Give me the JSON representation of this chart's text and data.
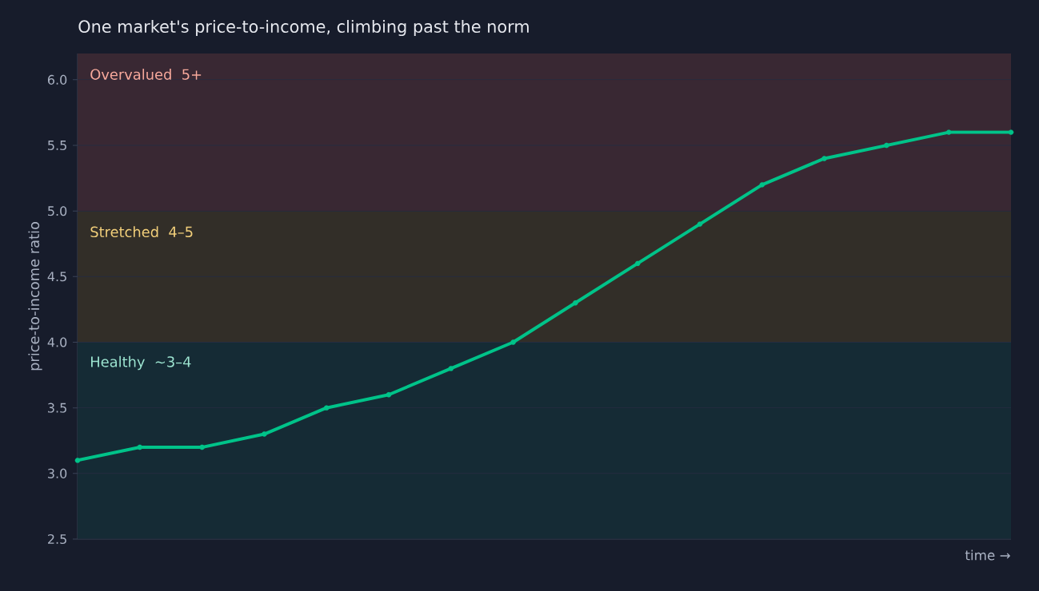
{
  "chart_data": {
    "type": "line",
    "title": "One market's price-to-income, climbing past the norm",
    "xlabel": "time →",
    "ylabel": "price-to-income ratio",
    "categories": [
      null,
      null,
      null,
      null,
      null,
      null,
      null,
      null,
      null,
      null,
      null,
      null,
      null,
      null,
      null,
      null
    ],
    "values": [
      3.1,
      3.2,
      3.2,
      3.3,
      3.5,
      3.6,
      3.8,
      4.0,
      4.3,
      4.6,
      4.9,
      5.2,
      5.4,
      5.5,
      5.6,
      5.6
    ],
    "color": "#00c389",
    "ylim": [
      2.5,
      6.2
    ],
    "yticks": [
      2.5,
      {
        "value": 3,
        "label": "3.0"
      },
      3.5,
      {
        "value": 4,
        "label": "4.0"
      },
      4.5,
      {
        "value": 5,
        "label": "5.0"
      },
      5.5,
      {
        "value": 6,
        "label": "6.0"
      }
    ],
    "bands": [
      {
        "axis": "y",
        "from": 2.5,
        "to": 4,
        "label": "Healthy  ~3–4",
        "color": "#152b35"
      },
      {
        "axis": "y",
        "from": 4,
        "to": 5,
        "label": "Stretched  4–5",
        "color": "#322e28"
      },
      {
        "axis": "y",
        "from": 5,
        "to": 6.2,
        "label": "Overvalued  5+",
        "color": "#392833"
      }
    ],
    "grid": "y",
    "marker": "circle",
    "line_style": "solid"
  }
}
